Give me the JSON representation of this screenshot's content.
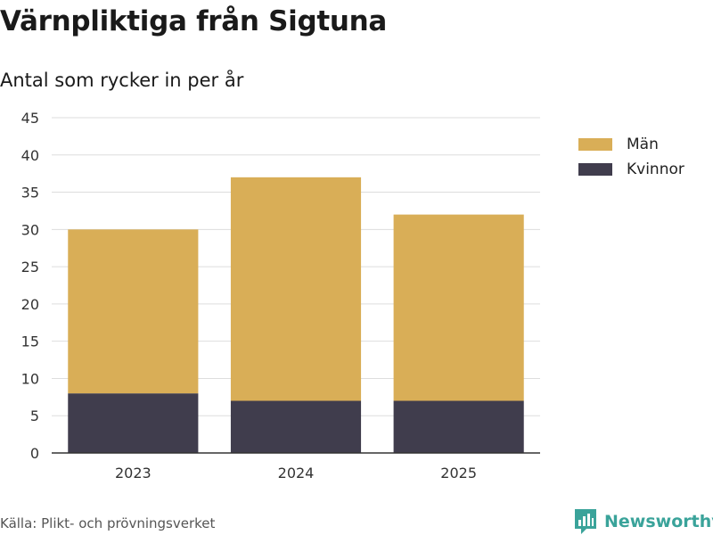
{
  "title": "Värnpliktiga från Sigtuna",
  "subtitle": "Antal som rycker in per år",
  "source": "Källa: Plikt- och prövningsverket",
  "logo_text": "Newsworthy",
  "colors": {
    "man": "#d9ae57",
    "kvinnor": "#403d4d",
    "grid": "#dddddd",
    "axis": "#333333",
    "brand": "#3aa39a"
  },
  "chart_data": {
    "type": "bar",
    "stacked": true,
    "categories": [
      "2023",
      "2024",
      "2025"
    ],
    "series": [
      {
        "name": "Kvinnor",
        "values": [
          8,
          7,
          7
        ],
        "color": "#403d4d"
      },
      {
        "name": "Män",
        "values": [
          22,
          30,
          25
        ],
        "color": "#d9ae57"
      }
    ],
    "ylim": [
      0,
      45
    ],
    "yticks": [
      0,
      5,
      10,
      15,
      20,
      25,
      30,
      35,
      40,
      45
    ],
    "grid": true,
    "legend_position": "right"
  },
  "legend": [
    {
      "label": "Män",
      "color": "#d9ae57"
    },
    {
      "label": "Kvinnor",
      "color": "#403d4d"
    }
  ]
}
